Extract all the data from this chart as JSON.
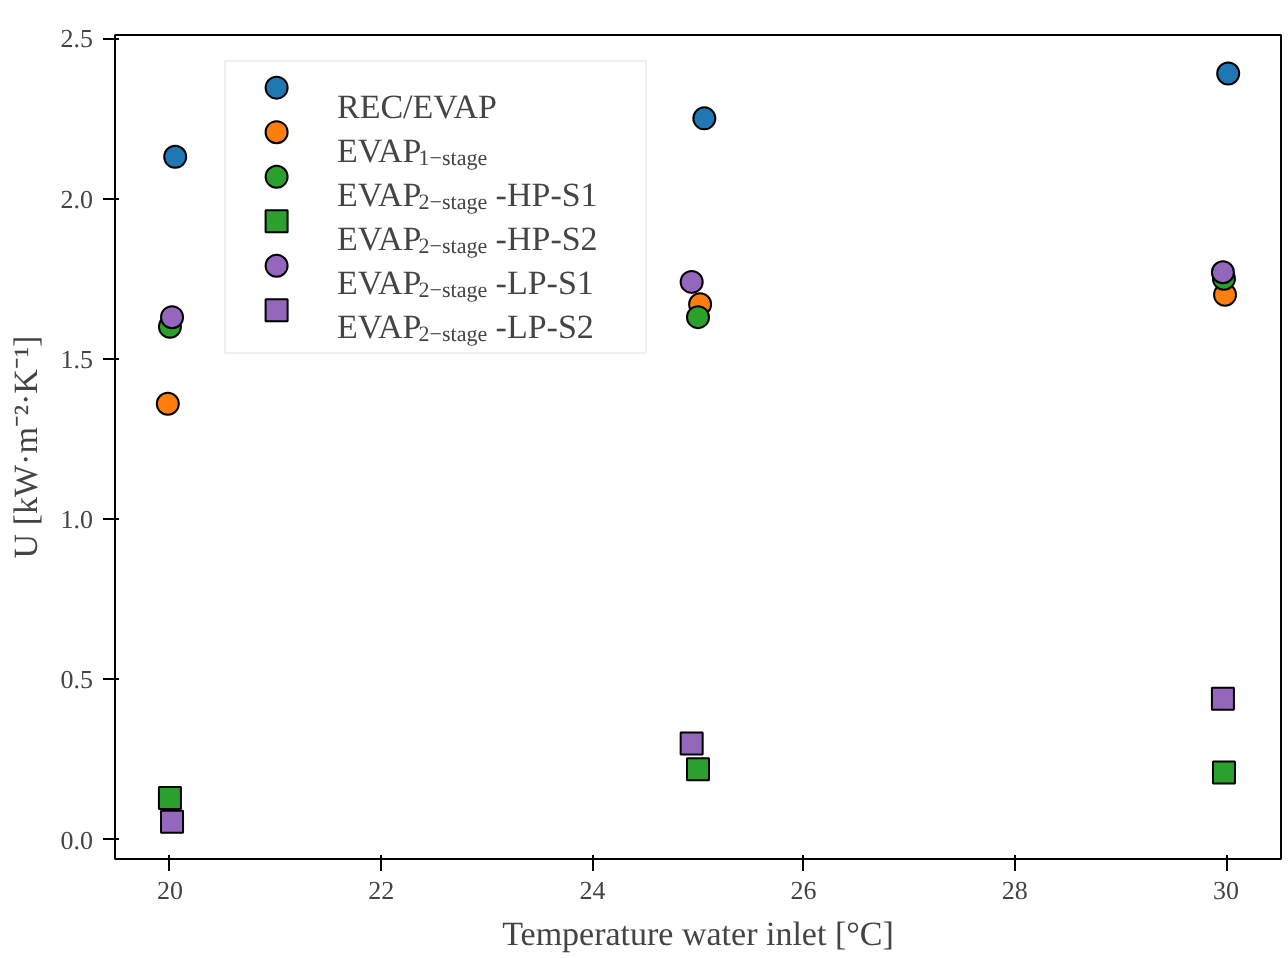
{
  "chart_data": {
    "type": "scatter",
    "xlabel": "Temperature water inlet [°C]",
    "ylabel": "U [kW·m⁻²·K⁻¹]",
    "xlim": [
      19.48,
      30.52
    ],
    "ylim": [
      -0.06,
      2.51
    ],
    "xticks": [
      20,
      22,
      24,
      26,
      28,
      30
    ],
    "yticks": [
      {
        "value": 0,
        "label": "0.0"
      },
      {
        "value": 0.5,
        "label": "0.5"
      },
      {
        "value": 1,
        "label": "1.0"
      },
      {
        "value": 1.5,
        "label": "1.5"
      },
      {
        "value": 2,
        "label": "2.0"
      },
      {
        "value": 2.5,
        "label": "2.5"
      }
    ],
    "grid": false,
    "legend": "top left",
    "series": [
      {
        "name": "REC/EVAP",
        "color": "#1f77b4",
        "marker": "circle",
        "x": [
          20.05,
          25.06,
          30.02
        ],
        "values": [
          2.13,
          2.25,
          2.39
        ]
      },
      {
        "name": "EVAP$_{1−stage}$",
        "color": "#ff7f0e",
        "marker": "circle",
        "x": [
          19.98,
          25.02,
          29.99
        ],
        "values": [
          1.36,
          1.67,
          1.7
        ]
      },
      {
        "name": "EVAP$_{2−stage}$-HP-S1",
        "color": "#2ca02c",
        "marker": "circle",
        "x": [
          20.0,
          25.0,
          29.98
        ],
        "values": [
          1.6,
          1.63,
          1.75
        ]
      },
      {
        "name": "EVAP$_{2−stage}$-HP-S2",
        "color": "#2ca02c",
        "marker": "square",
        "x": [
          20.0,
          25.0,
          29.98
        ],
        "values": [
          0.13,
          0.22,
          0.21
        ]
      },
      {
        "name": "EVAP$_{2−stage}$-LP-S1",
        "color": "#9467bd",
        "marker": "circle",
        "x": [
          20.02,
          24.94,
          29.97
        ],
        "values": [
          1.63,
          1.74,
          1.77
        ]
      },
      {
        "name": "EVAP$_{2−stage}$-LP-S2",
        "color": "#9467bd",
        "marker": "square",
        "x": [
          20.02,
          24.94,
          29.97
        ],
        "values": [
          0.056,
          0.3,
          0.44
        ]
      }
    ]
  }
}
